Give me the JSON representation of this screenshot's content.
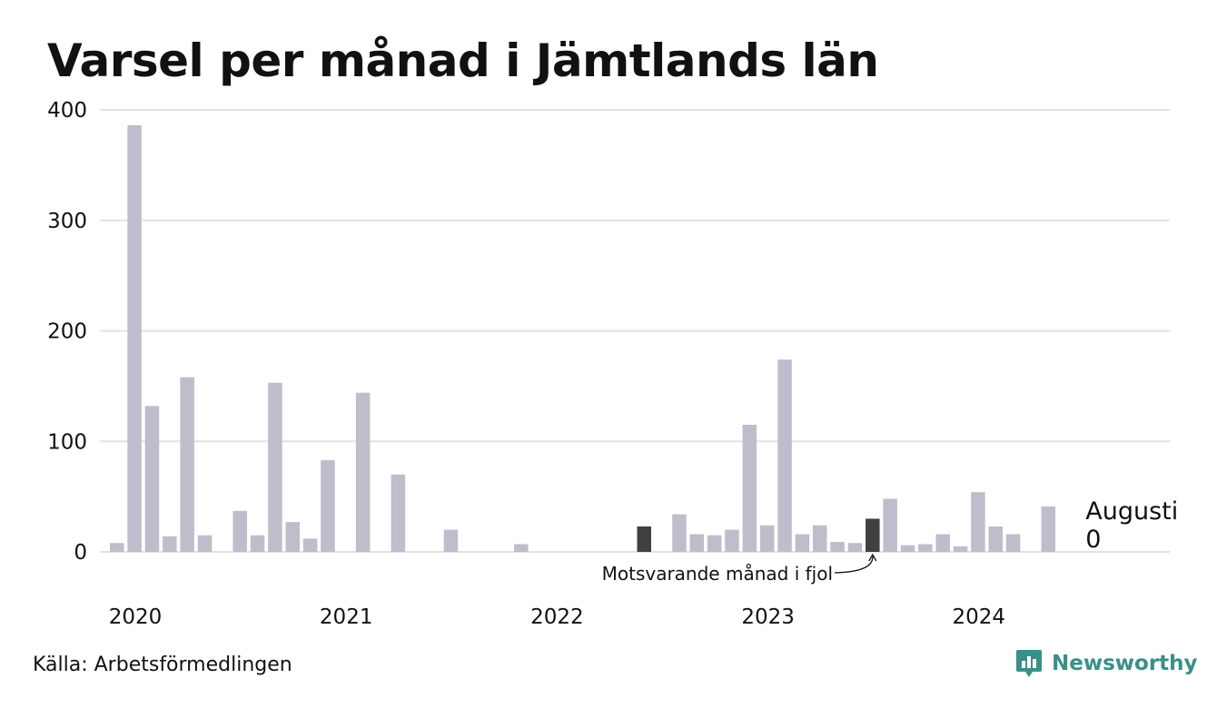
{
  "chart_data": {
    "type": "bar",
    "title": "Varsel per månad i Jämtlands län",
    "ylim": [
      0,
      400
    ],
    "yticks": [
      "0",
      "100",
      "200",
      "300",
      "400"
    ],
    "grid": true,
    "x_start": "2020-01",
    "year_labels": [
      "2020",
      "2021",
      "2022",
      "2023",
      "2024"
    ],
    "months": [
      "2020-01",
      "2020-02",
      "2020-03",
      "2020-04",
      "2020-05",
      "2020-06",
      "2020-07",
      "2020-08",
      "2020-09",
      "2020-10",
      "2020-11",
      "2020-12",
      "2021-01",
      "2021-02",
      "2021-03",
      "2021-04",
      "2021-05",
      "2021-06",
      "2021-07",
      "2021-08",
      "2021-09",
      "2021-10",
      "2021-11",
      "2021-12",
      "2022-01",
      "2022-02",
      "2022-03",
      "2022-04",
      "2022-05",
      "2022-06",
      "2022-07",
      "2022-08",
      "2022-09",
      "2022-10",
      "2022-11",
      "2022-12",
      "2023-01",
      "2023-02",
      "2023-03",
      "2023-04",
      "2023-05",
      "2023-06",
      "2023-07",
      "2023-08",
      "2023-09",
      "2023-10",
      "2023-11",
      "2023-12",
      "2024-01",
      "2024-02",
      "2024-03",
      "2024-04",
      "2024-05",
      "2024-06",
      "2024-07",
      "2024-08"
    ],
    "values": [
      8,
      386,
      132,
      14,
      158,
      15,
      0,
      37,
      15,
      153,
      27,
      12,
      83,
      0,
      144,
      0,
      70,
      0,
      0,
      20,
      0,
      0,
      0,
      7,
      0,
      0,
      0,
      0,
      0,
      0,
      23,
      0,
      34,
      16,
      15,
      20,
      115,
      24,
      174,
      16,
      24,
      9,
      8,
      30,
      48,
      6,
      7,
      16,
      5,
      54,
      23,
      16,
      0,
      41,
      0,
      0
    ],
    "highlight_months": [
      "2022-07",
      "2023-08"
    ],
    "colors": {
      "bar": "#bfbccb",
      "highlight": "#404040",
      "grid": "#e2e2e2"
    },
    "annotation": {
      "text": "Motsvarande månad i fjol",
      "month": "2023-08"
    },
    "last_label": {
      "month": "2024-08",
      "month_name": "Augusti",
      "value": "0"
    }
  },
  "footer": {
    "source": "Källa: Arbetsförmedlingen",
    "brand": "Newsworthy",
    "brand_color": "#3a8f87",
    "brand_icon": "newsworthy-logo-icon"
  }
}
